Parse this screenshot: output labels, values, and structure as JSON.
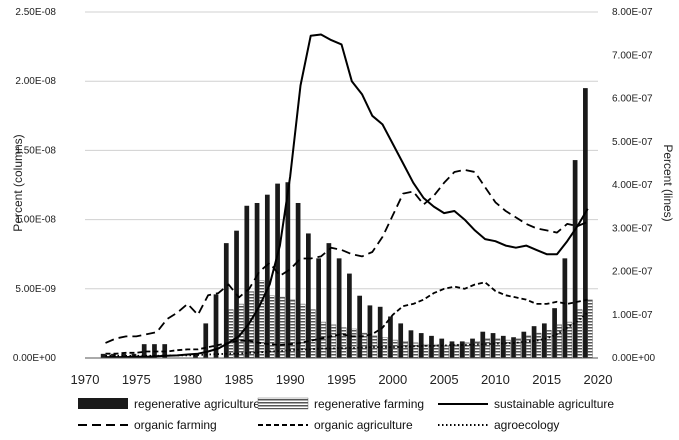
{
  "chart_data": {
    "type": "bar+line",
    "x_axis": {
      "ticks": [
        "1970",
        "1975",
        "1980",
        "1985",
        "1990",
        "1995",
        "2000",
        "2005",
        "2010",
        "2015",
        "2020"
      ],
      "xlim": [
        1970,
        2020
      ]
    },
    "left_axis": {
      "label": "Percent (columns)",
      "ylim": [
        0,
        2.5e-08
      ],
      "tick_labels": [
        "0.00E+00",
        "5.00E-09",
        "1.00E-08",
        "1.50E-08",
        "2.00E-08",
        "2.50E-08"
      ]
    },
    "right_axis": {
      "label": "Percent (lines)",
      "ylim": [
        0,
        8e-07
      ],
      "tick_labels": [
        "0.00E+00",
        "1.00E-07",
        "2.00E-07",
        "3.00E-07",
        "4.00E-07",
        "5.00E-07",
        "6.00E-07",
        "7.00E-07",
        "8.00E-07"
      ]
    },
    "years": [
      1972,
      1973,
      1974,
      1975,
      1976,
      1977,
      1978,
      1979,
      1980,
      1981,
      1982,
      1983,
      1984,
      1985,
      1986,
      1987,
      1988,
      1989,
      1990,
      1991,
      1992,
      1993,
      1994,
      1995,
      1996,
      1997,
      1998,
      1999,
      2000,
      2001,
      2002,
      2003,
      2004,
      2005,
      2006,
      2007,
      2008,
      2009,
      2010,
      2011,
      2012,
      2013,
      2014,
      2015,
      2016,
      2017,
      2018,
      2019
    ],
    "bar_series": [
      {
        "name": "regenerative agriculture",
        "values": [
          3e-10,
          3e-10,
          3e-10,
          3e-10,
          1e-09,
          1e-09,
          1e-09,
          0,
          0,
          3e-10,
          2.5e-09,
          4.6e-09,
          8.3e-09,
          9.2e-09,
          1.1e-08,
          1.12e-08,
          1.18e-08,
          1.26e-08,
          1.27e-08,
          1.12e-08,
          9e-09,
          7.2e-09,
          8.3e-09,
          7.2e-09,
          6.1e-09,
          4.5e-09,
          3.8e-09,
          3.7e-09,
          3e-09,
          2.5e-09,
          2e-09,
          1.8e-09,
          1.6e-09,
          1.4e-09,
          1.2e-09,
          1.2e-09,
          1.4e-09,
          1.9e-09,
          1.8e-09,
          1.6e-09,
          1.5e-09,
          1.9e-09,
          2.3e-09,
          2.5e-09,
          3.6e-09,
          7.2e-09,
          1.43e-08,
          1.95e-08
        ]
      },
      {
        "name": "regenerative farming",
        "values": [
          0,
          0,
          0,
          0,
          0,
          0,
          0,
          0,
          0,
          0,
          0,
          0,
          3.5e-09,
          3.9e-09,
          4.8e-09,
          5.6e-09,
          4.5e-09,
          4.4e-09,
          4.2e-09,
          3.9e-09,
          3.5e-09,
          2.6e-09,
          2.4e-09,
          2.2e-09,
          2.1e-09,
          1.8e-09,
          1.6e-09,
          1.5e-09,
          1.3e-09,
          1.2e-09,
          1.1e-09,
          1e-09,
          1e-09,
          9e-10,
          1e-09,
          1.1e-09,
          1.2e-09,
          1.4e-09,
          1.4e-09,
          1.3e-09,
          1.4e-09,
          1.6e-09,
          1.8e-09,
          2e-09,
          2.4e-09,
          2.6e-09,
          3.5e-09,
          4.2e-09
        ]
      }
    ],
    "line_series": [
      {
        "name": "sustainable agriculture",
        "style": "solid",
        "values": [
          2e-09,
          2e-09,
          2e-09,
          3e-09,
          3e-09,
          4e-09,
          5e-09,
          6e-09,
          8e-09,
          1e-08,
          1.5e-08,
          2.2e-08,
          3.5e-08,
          5e-08,
          8e-08,
          1.2e-07,
          1.7e-07,
          2.6e-07,
          4.2e-07,
          6.3e-07,
          7.45e-07,
          7.48e-07,
          7.35e-07,
          7.25e-07,
          6.4e-07,
          6.1e-07,
          5.6e-07,
          5.4e-07,
          4.95e-07,
          4.5e-07,
          4.05e-07,
          3.7e-07,
          3.5e-07,
          3.35e-07,
          3.4e-07,
          3.2e-07,
          2.95e-07,
          2.75e-07,
          2.7e-07,
          2.6e-07,
          2.55e-07,
          2.6e-07,
          2.5e-07,
          2.4e-07,
          2.4e-07,
          2.7e-07,
          3.05e-07,
          3.45e-07
        ]
      },
      {
        "name": "organic farming",
        "style": "long-dash",
        "values": [
          3.5e-08,
          4.5e-08,
          5e-08,
          5e-08,
          5.5e-08,
          6e-08,
          9e-08,
          1.05e-07,
          1.25e-07,
          1e-07,
          1.45e-07,
          1.5e-07,
          1.7e-07,
          1.4e-07,
          1.6e-07,
          2e-07,
          2.2e-07,
          1.9e-07,
          2.05e-07,
          2.3e-07,
          2.3e-07,
          2.35e-07,
          2.55e-07,
          2.5e-07,
          2.4e-07,
          2.35e-07,
          2.45e-07,
          2.8e-07,
          3.3e-07,
          3.8e-07,
          3.85e-07,
          3.55e-07,
          3.75e-07,
          4.05e-07,
          4.3e-07,
          4.35e-07,
          4.3e-07,
          3.95e-07,
          3.6e-07,
          3.4e-07,
          3.25e-07,
          3.1e-07,
          3e-07,
          2.95e-07,
          2.9e-07,
          3.1e-07,
          3.05e-07,
          3.15e-07
        ]
      },
      {
        "name": "organic agriculture",
        "style": "short-dash",
        "values": [
          1e-08,
          1e-08,
          1.2e-08,
          1.2e-08,
          1.5e-08,
          1.5e-08,
          1.5e-08,
          1.8e-08,
          2e-08,
          2e-08,
          2.5e-08,
          3e-08,
          3.5e-08,
          4e-08,
          4e-08,
          3.5e-08,
          3.2e-08,
          3e-08,
          3.2e-08,
          3.5e-08,
          4e-08,
          4.5e-08,
          5e-08,
          5.5e-08,
          5e-08,
          5e-08,
          5.5e-08,
          7e-08,
          1e-07,
          1.2e-07,
          1.25e-07,
          1.35e-07,
          1.5e-07,
          1.6e-07,
          1.65e-07,
          1.6e-07,
          1.7e-07,
          1.75e-07,
          1.55e-07,
          1.45e-07,
          1.4e-07,
          1.35e-07,
          1.25e-07,
          1.25e-07,
          1.3e-07,
          1.25e-07,
          1.3e-07,
          1.35e-07
        ]
      },
      {
        "name": "agroecology",
        "style": "dotted",
        "values": [
          5e-09,
          5e-09,
          5e-09,
          5e-09,
          5e-09,
          5e-09,
          6e-09,
          6e-09,
          6e-09,
          7e-09,
          8e-09,
          9e-09,
          1e-08,
          1e-08,
          1.2e-08,
          1.3e-08,
          1.5e-08,
          1.6e-08,
          1.8e-08,
          2e-08,
          2e-08,
          2.2e-08,
          2.2e-08,
          2.3e-08,
          2.3e-08,
          2.4e-08,
          2.5e-08,
          2.5e-08,
          2.5e-08,
          2.6e-08,
          2.7e-08,
          2.8e-08,
          2.8e-08,
          2.9e-08,
          3e-08,
          3e-08,
          3.1e-08,
          3.2e-08,
          3.3e-08,
          3.4e-08,
          3.5e-08,
          3.8e-08,
          4e-08,
          4.5e-08,
          5.5e-08,
          7e-08,
          8.5e-08,
          1.05e-07
        ]
      }
    ],
    "legend": [
      {
        "label": "regenerative agriculture",
        "kind": "bar-solid"
      },
      {
        "label": "regenerative farming",
        "kind": "bar-striped"
      },
      {
        "label": "sustainable agriculture",
        "kind": "line-solid"
      },
      {
        "label": "organic farming",
        "kind": "line-long-dash"
      },
      {
        "label": "organic agriculture",
        "kind": "line-short-dash"
      },
      {
        "label": "agroecology",
        "kind": "line-dotted"
      }
    ],
    "colors": {
      "bar_solid": "#1a1a1a",
      "bar_stripe": "#555555",
      "line": "#000000",
      "grid": "#d0d0d0"
    }
  }
}
